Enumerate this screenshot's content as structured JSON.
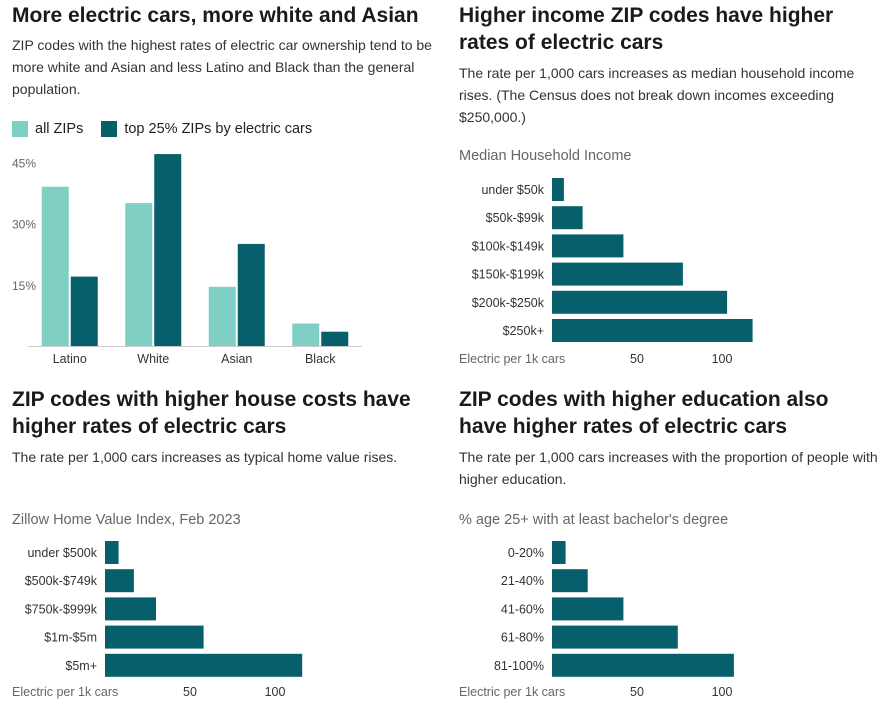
{
  "colors": {
    "light": "#7fcfc4",
    "dark": "#065f6b"
  },
  "panels": [
    {
      "title": "More electric cars, more white and Asian",
      "subtitle": "ZIP codes with the highest rates of electric car ownership tend to be more white and Asian and less Latino and Black than the general population.",
      "legend": [
        "all ZIPs",
        "top 25% ZIPs by electric cars"
      ]
    },
    {
      "title": "Higher income ZIP codes have higher rates of electric cars",
      "subtitle": "The rate per 1,000 cars increases as median household income rises. (The Census does not break down incomes exceeding $250,000.)"
    },
    {
      "title": "ZIP codes with higher house costs have higher rates of electric cars",
      "subtitle": "The rate per 1,000 cars increases as typical home value rises."
    },
    {
      "title": "ZIP codes with higher education also have higher rates of electric cars",
      "subtitle": "The rate per 1,000 cars increases with the proportion of people with higher education."
    }
  ],
  "chart_data": [
    {
      "type": "bar",
      "categories": [
        "Latino",
        "White",
        "Asian",
        "Black"
      ],
      "series": [
        {
          "name": "all ZIPs",
          "values": [
            39,
            35,
            14.5,
            5.5
          ]
        },
        {
          "name": "top 25% ZIPs by electric cars",
          "values": [
            17,
            47,
            25,
            3.5
          ]
        }
      ],
      "yticks": [
        "15%",
        "30%",
        "45%"
      ],
      "ytick_values": [
        15,
        30,
        45
      ],
      "ylim": [
        0,
        48
      ]
    },
    {
      "type": "bar",
      "orientation": "horizontal",
      "title": "Median Household Income",
      "categories": [
        "under $50k",
        "$50k-$99k",
        "$100k-$149k",
        "$150k-$199k",
        "$200k-$250k",
        "$250k+"
      ],
      "values": [
        7,
        18,
        42,
        77,
        103,
        118
      ],
      "xlabel": "Electric per 1k cars",
      "xticks": [
        "50",
        "100"
      ],
      "xtick_values": [
        50,
        100
      ],
      "xlim": [
        0,
        125
      ]
    },
    {
      "type": "bar",
      "orientation": "horizontal",
      "title": "Zillow Home Value Index, Feb 2023",
      "categories": [
        "under $500k",
        "$500k-$749k",
        "$750k-$999k",
        "$1m-$5m",
        "$5m+"
      ],
      "values": [
        8,
        17,
        30,
        58,
        116
      ],
      "xlabel": "Electric per 1k cars",
      "xticks": [
        "50",
        "100"
      ],
      "xtick_values": [
        50,
        100
      ],
      "xlim": [
        0,
        125
      ]
    },
    {
      "type": "bar",
      "orientation": "horizontal",
      "title": "% age 25+ with at least bachelor's degree",
      "categories": [
        "0-20%",
        "21-40%",
        "41-60%",
        "61-80%",
        "81-100%"
      ],
      "values": [
        8,
        21,
        42,
        74,
        107
      ],
      "xlabel": "Electric per 1k cars",
      "xticks": [
        "50",
        "100"
      ],
      "xtick_values": [
        50,
        100
      ],
      "xlim": [
        0,
        125
      ]
    }
  ]
}
